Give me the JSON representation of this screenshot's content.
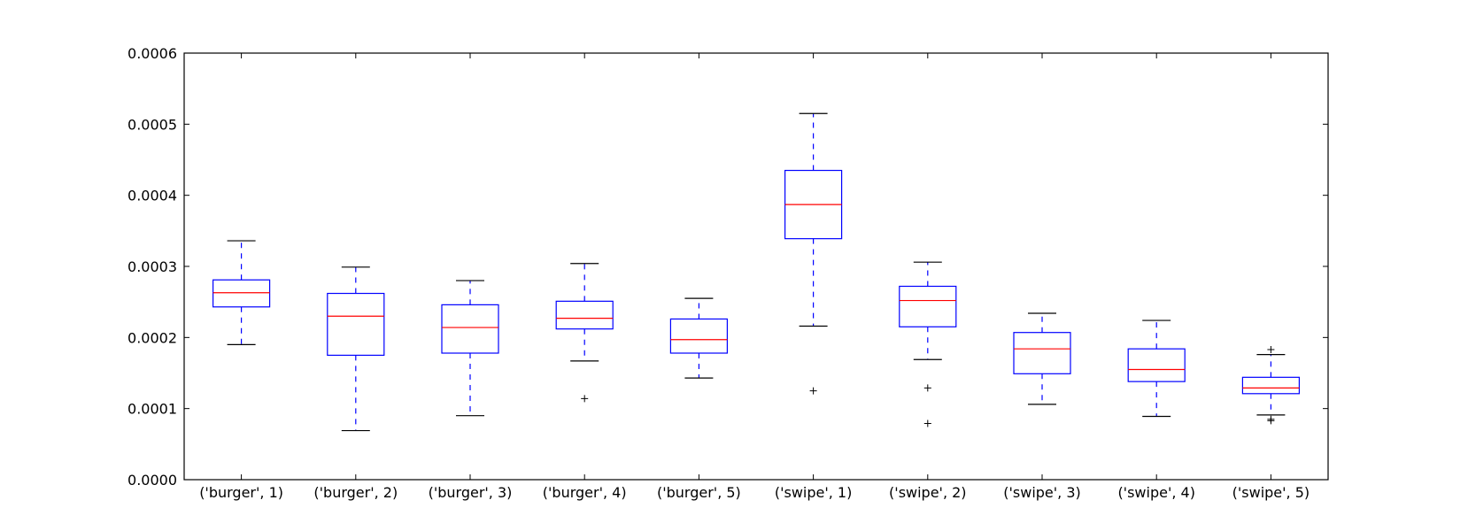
{
  "chart_data": {
    "type": "box",
    "title": "",
    "xlabel": "",
    "ylabel": "",
    "ylim": [
      0,
      0.0006
    ],
    "yticks": [
      "0.0000",
      "0.0001",
      "0.0002",
      "0.0003",
      "0.0004",
      "0.0005",
      "0.0006"
    ],
    "ytick_values": [
      0,
      0.0001,
      0.0002,
      0.0003,
      0.0004,
      0.0005,
      0.0006
    ],
    "grid": false,
    "colors": {
      "box": "#0000ff",
      "median": "#ff0000",
      "whisker_cap": "#000000",
      "flier": "#000000"
    },
    "categories": [
      "('burger', 1)",
      "('burger', 2)",
      "('burger', 3)",
      "('burger', 4)",
      "('burger', 5)",
      "('swipe', 1)",
      "('swipe', 2)",
      "('swipe', 3)",
      "('swipe', 4)",
      "('swipe', 5)"
    ],
    "boxes": [
      {
        "whislo": 0.00019,
        "q1": 0.000243,
        "med": 0.000263,
        "q3": 0.000281,
        "whishi": 0.000336,
        "fliers": []
      },
      {
        "whislo": 6.9e-05,
        "q1": 0.000175,
        "med": 0.00023,
        "q3": 0.000262,
        "whishi": 0.000299,
        "fliers": []
      },
      {
        "whislo": 9e-05,
        "q1": 0.000178,
        "med": 0.000214,
        "q3": 0.000246,
        "whishi": 0.00028,
        "fliers": []
      },
      {
        "whislo": 0.000167,
        "q1": 0.000212,
        "med": 0.000227,
        "q3": 0.000251,
        "whishi": 0.000304,
        "fliers": [
          0.000114
        ]
      },
      {
        "whislo": 0.000143,
        "q1": 0.000178,
        "med": 0.000197,
        "q3": 0.000226,
        "whishi": 0.000255,
        "fliers": []
      },
      {
        "whislo": 0.000216,
        "q1": 0.000339,
        "med": 0.000387,
        "q3": 0.000435,
        "whishi": 0.000515,
        "fliers": [
          0.000125
        ]
      },
      {
        "whislo": 0.000169,
        "q1": 0.000215,
        "med": 0.000252,
        "q3": 0.000272,
        "whishi": 0.000306,
        "fliers": [
          0.000129,
          7.9e-05
        ]
      },
      {
        "whislo": 0.000106,
        "q1": 0.000149,
        "med": 0.000184,
        "q3": 0.000207,
        "whishi": 0.000234,
        "fliers": []
      },
      {
        "whislo": 8.9e-05,
        "q1": 0.000138,
        "med": 0.000155,
        "q3": 0.000184,
        "whishi": 0.000224,
        "fliers": []
      },
      {
        "whislo": 9.1e-05,
        "q1": 0.000121,
        "med": 0.000129,
        "q3": 0.000144,
        "whishi": 0.000176,
        "fliers": [
          0.000183,
          8.3e-05,
          8.5e-05
        ]
      }
    ]
  }
}
